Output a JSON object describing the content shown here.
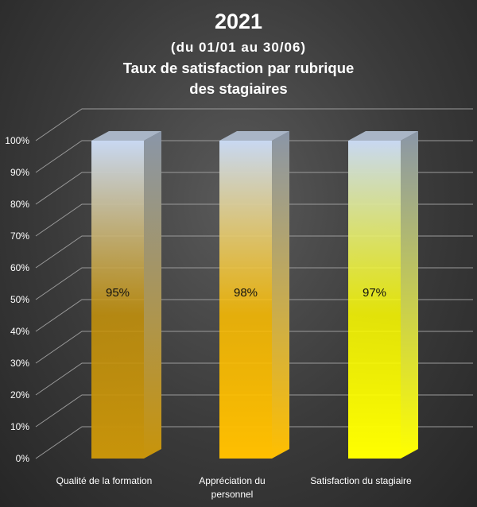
{
  "chart_data": {
    "type": "bar",
    "title": "2021",
    "subtitle": "(du 01/01 au 30/06)",
    "heading": "Taux de satisfaction par rubrique des stagiaires",
    "categories": [
      "Qualité de la formation",
      "Appréciation du personnel",
      "Satisfaction du stagiaire"
    ],
    "category_lines": [
      [
        "Qualité de la formation"
      ],
      [
        "Appréciation du",
        "personnel"
      ],
      [
        "Satisfaction du stagiaire"
      ]
    ],
    "values": [
      95,
      98,
      97
    ],
    "data_labels": [
      "95%",
      "98%",
      "97%"
    ],
    "bar_fill_percent": [
      100,
      100,
      100
    ],
    "ylim": [
      0,
      100
    ],
    "yticks": [
      "0%",
      "10%",
      "20%",
      "30%",
      "40%",
      "50%",
      "60%",
      "70%",
      "80%",
      "90%",
      "100%"
    ],
    "grid": true,
    "style": "3d-column",
    "colors": {
      "bar_bottom": [
        "#c8940a",
        "#ffbf00",
        "#ffff00"
      ],
      "bar_top": "#c8d8f2",
      "grid": "#9a9a9a",
      "background": "#3a3a3a"
    }
  }
}
